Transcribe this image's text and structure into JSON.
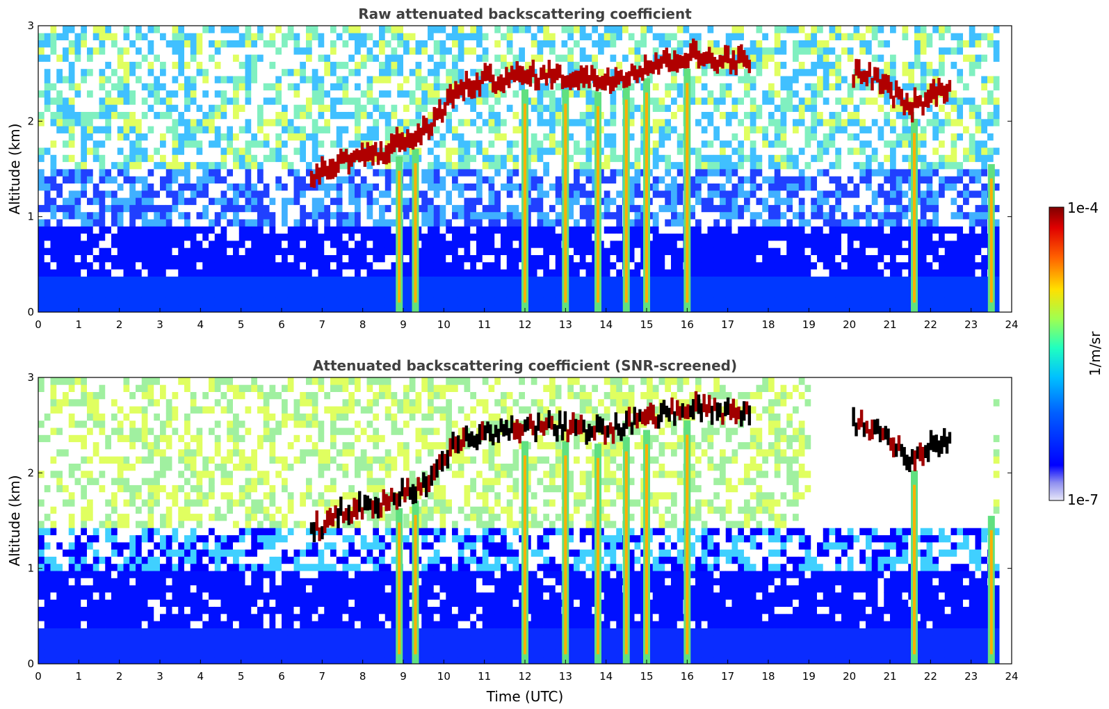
{
  "chart_data": [
    {
      "type": "heatmap",
      "title": "Raw attenuated backscattering coefficient",
      "xlabel": "",
      "ylabel": "Altitude (km)",
      "xlim": [
        0,
        24
      ],
      "ylim": [
        0,
        3
      ],
      "xticks": [
        "0",
        "1",
        "2",
        "3",
        "4",
        "5",
        "6",
        "7",
        "8",
        "9",
        "10",
        "11",
        "12",
        "13",
        "14",
        "15",
        "16",
        "17",
        "18",
        "19",
        "20",
        "21",
        "22",
        "23",
        "24"
      ],
      "yticks": [
        "0",
        "1",
        "2",
        "3"
      ],
      "grid": false,
      "data_end_hour": 23.65,
      "cloud_layer": [
        {
          "time": 6.7,
          "altitude_km": 1.3
        },
        {
          "time": 7.5,
          "altitude_km": 1.5
        },
        {
          "time": 8.5,
          "altitude_km": 1.6
        },
        {
          "time": 9.5,
          "altitude_km": 1.8
        },
        {
          "time": 10.2,
          "altitude_km": 2.2
        },
        {
          "time": 11.0,
          "altitude_km": 2.35
        },
        {
          "time": 12.5,
          "altitude_km": 2.4
        },
        {
          "time": 14.0,
          "altitude_km": 2.35
        },
        {
          "time": 15.0,
          "altitude_km": 2.5
        },
        {
          "time": 16.0,
          "altitude_km": 2.6
        },
        {
          "time": 17.2,
          "altitude_km": 2.55
        },
        {
          "time": 20.5,
          "altitude_km": 2.4
        },
        {
          "time": 21.5,
          "altitude_km": 2.05
        },
        {
          "time": 22.5,
          "altitude_km": 2.3
        }
      ],
      "precipitation_streaks_hours": [
        8.9,
        9.3,
        12.0,
        13.0,
        13.8,
        14.5,
        15.0,
        16.0,
        21.6,
        23.5
      ]
    },
    {
      "type": "heatmap",
      "title": "Attenuated backscattering coefficient (SNR-screened)",
      "xlabel": "Time (UTC)",
      "ylabel": "Altitude (km)",
      "xlim": [
        0,
        24
      ],
      "ylim": [
        0,
        3
      ],
      "xticks": [
        "0",
        "1",
        "2",
        "3",
        "4",
        "5",
        "6",
        "7",
        "8",
        "9",
        "10",
        "11",
        "12",
        "13",
        "14",
        "15",
        "16",
        "17",
        "18",
        "19",
        "20",
        "21",
        "22",
        "23",
        "24"
      ],
      "yticks": [
        "0",
        "1",
        "2",
        "3"
      ],
      "grid": false,
      "data_end_hour": 23.65,
      "cloud_layer": [
        {
          "time": 6.7,
          "altitude_km": 1.3
        },
        {
          "time": 7.5,
          "altitude_km": 1.5
        },
        {
          "time": 8.5,
          "altitude_km": 1.6
        },
        {
          "time": 9.5,
          "altitude_km": 1.8
        },
        {
          "time": 10.2,
          "altitude_km": 2.2
        },
        {
          "time": 11.0,
          "altitude_km": 2.35
        },
        {
          "time": 12.5,
          "altitude_km": 2.4
        },
        {
          "time": 14.0,
          "altitude_km": 2.35
        },
        {
          "time": 15.0,
          "altitude_km": 2.5
        },
        {
          "time": 16.0,
          "altitude_km": 2.6
        },
        {
          "time": 17.2,
          "altitude_km": 2.55
        },
        {
          "time": 20.5,
          "altitude_km": 2.4
        },
        {
          "time": 21.5,
          "altitude_km": 2.05
        },
        {
          "time": 22.5,
          "altitude_km": 2.3
        }
      ],
      "precipitation_streaks_hours": [
        8.9,
        9.3,
        12.0,
        13.0,
        13.8,
        14.5,
        15.0,
        16.0,
        21.6,
        23.5
      ]
    }
  ],
  "colorbar": {
    "label": "1/m/sr",
    "max_label": "1e-4",
    "min_label": "1e-7",
    "colormap": "jet",
    "colors": [
      "#e6e6f5",
      "#0000ff",
      "#00a0ff",
      "#00ffc0",
      "#c0ff40",
      "#ffd000",
      "#ff4000",
      "#8b0000"
    ]
  }
}
